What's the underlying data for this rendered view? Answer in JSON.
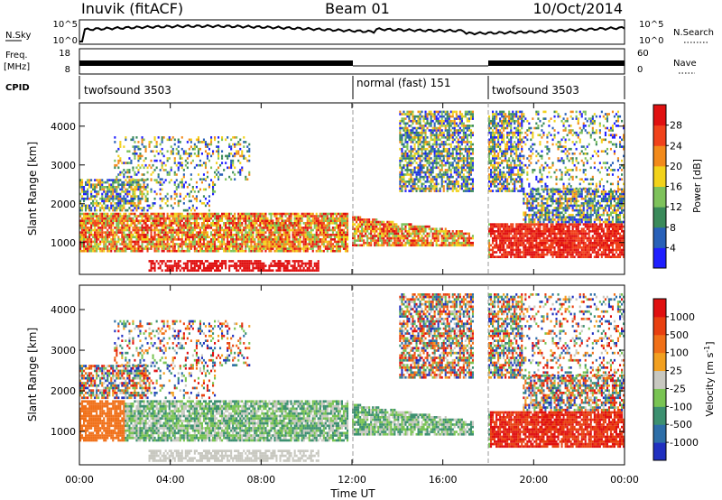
{
  "header": {
    "station": "Inuvik (fitACF)",
    "beam": "Beam 01",
    "date": "10/Oct/2014"
  },
  "status_panels": {
    "nsky": {
      "label": "N.Sky",
      "ticks": [
        "10^5",
        "10^0"
      ]
    },
    "nsearch": {
      "label": "N.Search",
      "ticks": [
        "10^5",
        "10^0"
      ]
    },
    "freq": {
      "label_line1": "Freq.",
      "label_line2": "[MHz]",
      "ticks": [
        "18",
        "8"
      ]
    },
    "nave": {
      "label": "Nave",
      "ticks": [
        "60",
        "0"
      ]
    },
    "cpid": {
      "label": "CPID",
      "segments": [
        {
          "name": "twofsound 3503",
          "start_h": 0,
          "end_h": 12
        },
        {
          "name": "normal (fast) 151",
          "start_h": 12,
          "end_h": 18
        },
        {
          "name": "twofsound 3503",
          "start_h": 18,
          "end_h": 24
        }
      ]
    }
  },
  "chart_data": [
    {
      "type": "heatmap",
      "name": "power",
      "ylabel": "Slant Range [km]",
      "y_ticks": [
        "1000",
        "2000",
        "3000",
        "4000"
      ],
      "ylim": [
        180,
        4600
      ],
      "xlim_hours": [
        0,
        24
      ],
      "colorbar": {
        "label": "Power [dB]",
        "ticks": [
          "4",
          "8",
          "12",
          "16",
          "20",
          "24",
          "28"
        ],
        "colors": [
          "#1f1fff",
          "#2860b8",
          "#3a8a5a",
          "#7ec25b",
          "#f2d21b",
          "#f28a1b",
          "#f0421b",
          "#e01010"
        ]
      }
    },
    {
      "type": "heatmap",
      "name": "velocity",
      "ylabel": "Slant Range [km]",
      "y_ticks": [
        "1000",
        "2000",
        "3000",
        "4000"
      ],
      "ylim": [
        180,
        4600
      ],
      "xlim_hours": [
        0,
        24
      ],
      "x_ticks": [
        "00:00",
        "04:00",
        "08:00",
        "12:00",
        "16:00",
        "20:00",
        "00:00"
      ],
      "xlabel": "Time UT",
      "colorbar": {
        "label": "Velocity [m s",
        "label_sup": "-1",
        "label_end": "]",
        "ticks": [
          "1000",
          "500",
          "100",
          "25",
          "-25",
          "-100",
          "-500",
          "-1000"
        ],
        "colors": [
          "#2030c0",
          "#2d6ea8",
          "#3c9070",
          "#79c453",
          "#c8c8c0",
          "#f2a020",
          "#f07018",
          "#e84010",
          "#e01010"
        ]
      }
    }
  ]
}
